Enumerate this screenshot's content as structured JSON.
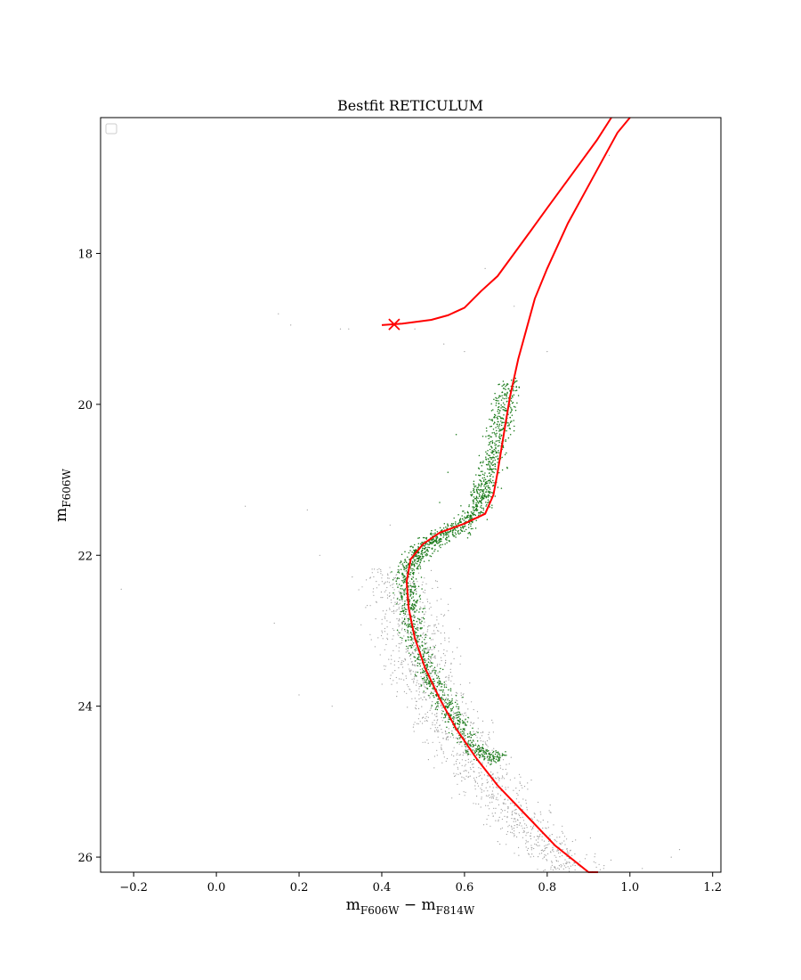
{
  "chart_data": {
    "type": "scatter",
    "title": "Bestfit RETICULUM",
    "xlabel": {
      "main": "m",
      "sub1": "F606W",
      "minus": " − ",
      "main2": "m",
      "sub2": "F814W"
    },
    "ylabel": {
      "main": "m",
      "sub": "F606W"
    },
    "xlim": [
      -0.28,
      1.22
    ],
    "ylim": [
      26.2,
      16.2
    ],
    "y_inverted": true,
    "x_ticks": [
      -0.2,
      0.0,
      0.2,
      0.4,
      0.6,
      0.8,
      1.0,
      1.2
    ],
    "x_tick_labels": [
      "−0.2",
      "0.0",
      "0.2",
      "0.4",
      "0.6",
      "0.8",
      "1.0",
      "1.2"
    ],
    "y_ticks": [
      18,
      20,
      22,
      24,
      26
    ],
    "y_tick_labels": [
      "18",
      "20",
      "22",
      "24",
      "26"
    ],
    "grid": false,
    "legend": {
      "placement": "upper-left",
      "entries": []
    },
    "colors": {
      "isochrone": "#ff0000",
      "selected_stars": "#1a7a1a",
      "all_stars": "#9a9a9a"
    },
    "series": [
      {
        "kind": "scatter",
        "color_key": "all_stars",
        "ridge": [
          [
            0.44,
            22.2
          ],
          [
            0.455,
            22.6
          ],
          [
            0.47,
            23.0
          ],
          [
            0.49,
            23.4
          ],
          [
            0.52,
            23.8
          ],
          [
            0.56,
            24.2
          ],
          [
            0.61,
            24.6
          ],
          [
            0.66,
            25.0
          ],
          [
            0.72,
            25.4
          ],
          [
            0.79,
            25.8
          ],
          [
            0.86,
            26.2
          ]
        ],
        "ridge_width": 0.09,
        "stragglers": [
          [
            0.15,
            18.8
          ],
          [
            0.18,
            18.95
          ],
          [
            0.3,
            19.0
          ],
          [
            0.32,
            19.0
          ],
          [
            0.48,
            19.0
          ],
          [
            0.55,
            19.2
          ],
          [
            0.6,
            19.3
          ],
          [
            0.8,
            19.3
          ],
          [
            0.95,
            16.7
          ],
          [
            0.07,
            21.35
          ],
          [
            -0.23,
            22.45
          ],
          [
            0.14,
            22.9
          ],
          [
            0.2,
            23.85
          ],
          [
            0.28,
            24.0
          ],
          [
            1.1,
            26.0
          ],
          [
            1.12,
            25.9
          ],
          [
            1.03,
            26.15
          ],
          [
            0.22,
            21.4
          ],
          [
            0.25,
            22.0
          ],
          [
            0.42,
            21.6
          ],
          [
            0.65,
            18.2
          ],
          [
            0.72,
            18.7
          ]
        ]
      },
      {
        "kind": "scatter",
        "color_key": "selected_stars",
        "ridge": [
          [
            0.705,
            19.7
          ],
          [
            0.69,
            20.2
          ],
          [
            0.675,
            20.6
          ],
          [
            0.655,
            21.0
          ],
          [
            0.64,
            21.3
          ],
          [
            0.6,
            21.6
          ],
          [
            0.54,
            21.75
          ],
          [
            0.49,
            21.95
          ],
          [
            0.465,
            22.2
          ],
          [
            0.465,
            22.6
          ],
          [
            0.475,
            23.0
          ],
          [
            0.5,
            23.4
          ],
          [
            0.535,
            23.8
          ],
          [
            0.58,
            24.2
          ],
          [
            0.63,
            24.6
          ],
          [
            0.69,
            24.7
          ]
        ],
        "ridge_width": 0.03,
        "stragglers": [
          [
            0.56,
            20.9
          ],
          [
            0.58,
            20.4
          ],
          [
            0.54,
            21.3
          ],
          [
            0.56,
            21.6
          ]
        ]
      },
      {
        "kind": "line",
        "name_label": "",
        "color_key": "isochrone",
        "points": [
          [
            1.0,
            16.2
          ],
          [
            0.97,
            16.4
          ],
          [
            0.93,
            16.8
          ],
          [
            0.89,
            17.2
          ],
          [
            0.85,
            17.6
          ],
          [
            0.8,
            18.2
          ],
          [
            0.77,
            18.6
          ],
          [
            0.75,
            19.0
          ],
          [
            0.73,
            19.4
          ],
          [
            0.71,
            19.9
          ],
          [
            0.695,
            20.4
          ],
          [
            0.68,
            20.9
          ],
          [
            0.67,
            21.2
          ],
          [
            0.65,
            21.45
          ],
          [
            0.6,
            21.58
          ],
          [
            0.54,
            21.7
          ],
          [
            0.5,
            21.85
          ],
          [
            0.47,
            22.05
          ],
          [
            0.46,
            22.35
          ],
          [
            0.465,
            22.7
          ],
          [
            0.48,
            23.1
          ],
          [
            0.505,
            23.5
          ],
          [
            0.54,
            23.9
          ],
          [
            0.58,
            24.3
          ],
          [
            0.63,
            24.7
          ],
          [
            0.68,
            25.05
          ],
          [
            0.75,
            25.45
          ],
          [
            0.82,
            25.85
          ],
          [
            0.9,
            26.2
          ],
          [
            0.923,
            26.2
          ]
        ]
      },
      {
        "kind": "line",
        "name_label": "",
        "color_key": "isochrone",
        "points": [
          [
            0.4,
            18.95
          ],
          [
            0.45,
            18.93
          ],
          [
            0.52,
            18.88
          ],
          [
            0.56,
            18.82
          ],
          [
            0.6,
            18.72
          ],
          [
            0.64,
            18.5
          ],
          [
            0.68,
            18.3
          ],
          [
            0.72,
            18.0
          ],
          [
            0.76,
            17.7
          ],
          [
            0.8,
            17.4
          ],
          [
            0.84,
            17.1
          ],
          [
            0.88,
            16.8
          ],
          [
            0.92,
            16.5
          ],
          [
            0.955,
            16.2
          ]
        ]
      },
      {
        "kind": "marker",
        "shape": "x",
        "color_key": "isochrone",
        "x": 0.43,
        "y": 18.94
      }
    ]
  }
}
